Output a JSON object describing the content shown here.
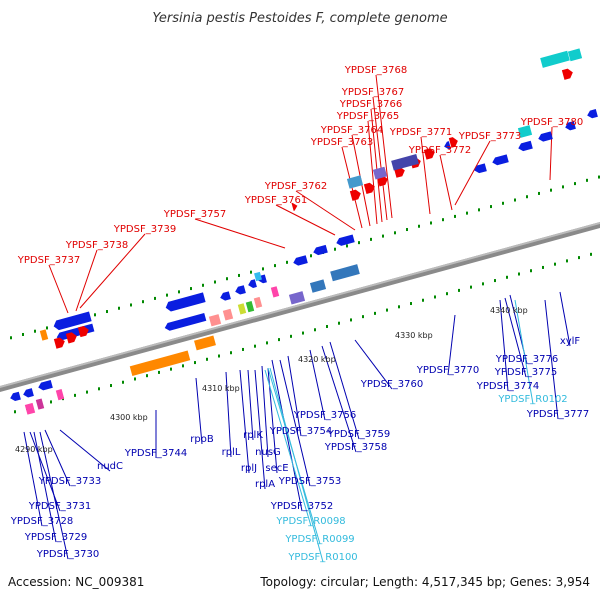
{
  "title": "Yersinia pestis Pestoides F, complete genome",
  "footer": {
    "accession": "Accession: NC_009381",
    "summary": "Topology: circular; Length: 4,517,345 bp; Genes: 3,954"
  },
  "colors": {
    "forward_label": "#e00000",
    "reverse_label": "#0000b0",
    "rna_label": "#33bbdd",
    "backbone": "#888888",
    "tick": "#008800"
  },
  "scale_labels": [
    "4290 kbp",
    "4300 kbp",
    "4310 kbp",
    "4320 kbp",
    "4330 kbp",
    "4340 kbp"
  ],
  "top_labels": [
    "YPDSF_3768",
    "YPDSF_3767",
    "YPDSF_3766",
    "YPDSF_3765",
    "YPDSF_3764",
    "YPDSF_3771",
    "YPDSF_3763",
    "YPDSF_3772",
    "YPDSF_3773",
    "YPDSF_3780",
    "YPDSF_3762",
    "YPDSF_3761",
    "YPDSF_3757",
    "YPDSF_3739",
    "YPDSF_3738",
    "YPDSF_3737"
  ],
  "bottom_labels": [
    "xylF",
    "YPDSF_3770",
    "YPDSF_3776",
    "YPDSF_3775",
    "YPDSF_3774",
    "YPDSF_R0102",
    "YPDSF_3777",
    "YPDSF_3760",
    "YPDSF_3756",
    "YPDSF_3754",
    "YPDSF_3759",
    "YPDSF_3758",
    "rplK",
    "nusG",
    "rpoB",
    "rplL",
    "rplJ",
    "secE",
    "rplA",
    "YPDSF_3744",
    "YPDSF_3753",
    "nudC",
    "YPDSF_3733",
    "YPDSF_3752",
    "YPDSF_3731",
    "YPDSF_3728",
    "YPDSF_R0098",
    "YPDSF_3729",
    "YPDSF_R0099",
    "YPDSF_3730",
    "YPDSF_R0100"
  ]
}
